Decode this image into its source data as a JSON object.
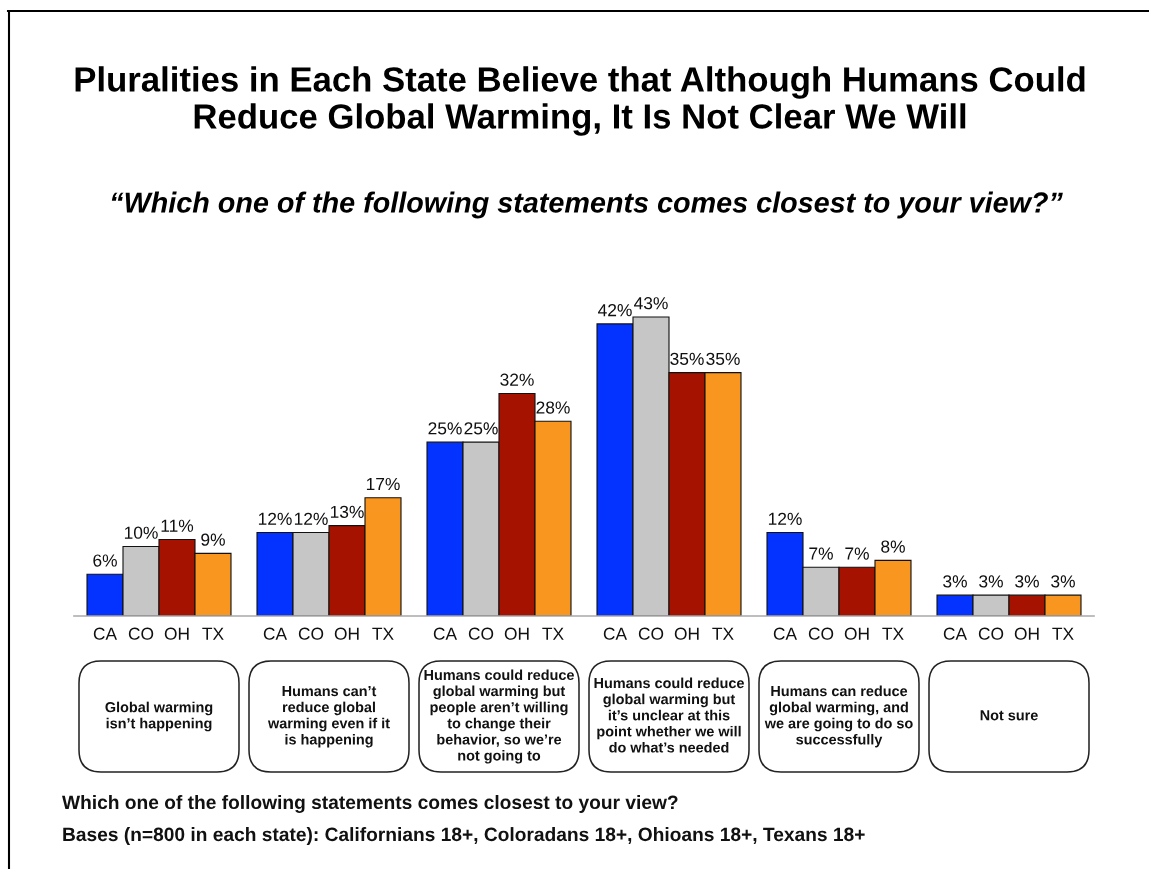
{
  "chart_data": {
    "type": "bar",
    "title": "Pluralities in Each State Believe that Although Humans Could\nReduce Global Warming, It Is Not Clear We Will",
    "subtitle": "“Which one of the following statements comes closest to your view?”",
    "categories": [
      "Global warming\nisn’t happening",
      "Humans can’t\nreduce global\nwarming even if it\nis happening",
      "Humans could reduce\nglobal warming but\npeople aren’t willing\nto change their\nbehavior, so we’re\nnot going to",
      "Humans could reduce\nglobal warming but\nit’s unclear at this\npoint whether we will\ndo what’s needed",
      "Humans can reduce\nglobal warming, and\nwe are going to do so\nsuccessfully",
      "Not sure"
    ],
    "series": [
      {
        "name": "CA",
        "color": "#0433ff",
        "values": [
          6,
          12,
          25,
          42,
          12,
          3
        ],
        "value_labels": [
          "6%",
          "12%",
          "25%",
          "42%",
          "12%",
          "3%"
        ]
      },
      {
        "name": "CO",
        "color": "#c6c6c6",
        "values": [
          10,
          12,
          25,
          43,
          7,
          3
        ],
        "value_labels": [
          "10%",
          "12%",
          "25%",
          "43%",
          "7%",
          "3%"
        ]
      },
      {
        "name": "OH",
        "color": "#a61200",
        "values": [
          11,
          13,
          32,
          35,
          7,
          3
        ],
        "value_labels": [
          "11%",
          "13%",
          "32%",
          "35%",
          "7%",
          "3%"
        ]
      },
      {
        "name": "TX",
        "color": "#f8961f",
        "values": [
          9,
          17,
          28,
          35,
          8,
          3
        ],
        "value_labels": [
          "9%",
          "17%",
          "28%",
          "35%",
          "8%",
          "3%"
        ]
      }
    ],
    "tick_labels": "x",
    "annotations": [
      "Which one of the following statements comes closest to your view?",
      "Bases (n=800 in each state): Californians 18+, Coloradans 18+, Ohioans 18+, Texans 18+"
    ]
  }
}
